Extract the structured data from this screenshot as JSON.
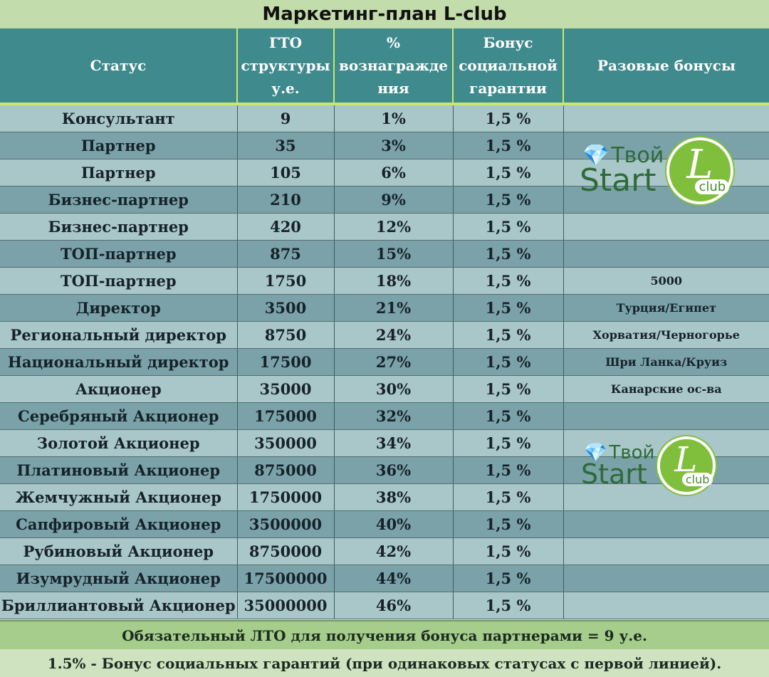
{
  "title": "Маркетинг-план L-club",
  "headers": {
    "status": "Статус",
    "gto": "ГТО структуры у.е.",
    "percent": "% вознагражде ния",
    "social": "Бонус социальной гарантии",
    "bonuses": "Разовые бонусы"
  },
  "rows": [
    {
      "status": "Консультант",
      "gto": "9",
      "percent": "1%",
      "social": "1,5 %",
      "bonus": ""
    },
    {
      "status": "Партнер",
      "gto": "35",
      "percent": "3%",
      "social": "1,5 %",
      "bonus": ""
    },
    {
      "status": "Партнер",
      "gto": "105",
      "percent": "6%",
      "social": "1,5 %",
      "bonus": ""
    },
    {
      "status": "Бизнес-партнер",
      "gto": "210",
      "percent": "9%",
      "social": "1,5 %",
      "bonus": ""
    },
    {
      "status": "Бизнес-партнер",
      "gto": "420",
      "percent": "12%",
      "social": "1,5 %",
      "bonus": ""
    },
    {
      "status": "ТОП-партнер",
      "gto": "875",
      "percent": "15%",
      "social": "1,5 %",
      "bonus": ""
    },
    {
      "status": "ТОП-партнер",
      "gto": "1750",
      "percent": "18%",
      "social": "1,5 %",
      "bonus": "5000"
    },
    {
      "status": "Директор",
      "gto": "3500",
      "percent": "21%",
      "social": "1,5 %",
      "bonus": "Турция/Египет"
    },
    {
      "status": "Региональный директор",
      "gto": "8750",
      "percent": "24%",
      "social": "1,5 %",
      "bonus": "Хорватия/Черногорье"
    },
    {
      "status": "Национальный директор",
      "gto": "17500",
      "percent": "27%",
      "social": "1,5 %",
      "bonus": "Шри Ланка/Круиз"
    },
    {
      "status": "Акционер",
      "gto": "35000",
      "percent": "30%",
      "social": "1,5 %",
      "bonus": "Канарские ос-ва"
    },
    {
      "status": "Серебряный Акционер",
      "gto": "175000",
      "percent": "32%",
      "social": "1,5 %",
      "bonus": ""
    },
    {
      "status": "Золотой Акционер",
      "gto": "350000",
      "percent": "34%",
      "social": "1,5 %",
      "bonus": ""
    },
    {
      "status": "Платиновый Акционер",
      "gto": "875000",
      "percent": "36%",
      "social": "1,5 %",
      "bonus": ""
    },
    {
      "status": "Жемчужный Акционер",
      "gto": "1750000",
      "percent": "38%",
      "social": "1,5 %",
      "bonus": ""
    },
    {
      "status": "Сапфировый Акционер",
      "gto": "3500000",
      "percent": "40%",
      "social": "1,5 %",
      "bonus": ""
    },
    {
      "status": "Рубиновый Акционер",
      "gto": "8750000",
      "percent": "42%",
      "social": "1,5 %",
      "bonus": ""
    },
    {
      "status": "Изумрудный Акционер",
      "gto": "17500000",
      "percent": "44%",
      "social": "1,5 %",
      "bonus": ""
    },
    {
      "status": "Бриллиантовый Акционер",
      "gto": "35000000",
      "percent": "46%",
      "social": "1,5 %",
      "bonus": ""
    }
  ],
  "footer": {
    "line1": "Обязательный ЛТО для получения бонуса партнерами = 9 у.е.",
    "line2": "1.5% - Бонус социальных гарантий (при одинаковых статусах с первой линией)."
  },
  "logo": {
    "word1": "Твой",
    "word2": "Start",
    "letter": "L",
    "club": "club",
    "icon": "diamond-icon",
    "brand_color": "#7fbf3b"
  }
}
